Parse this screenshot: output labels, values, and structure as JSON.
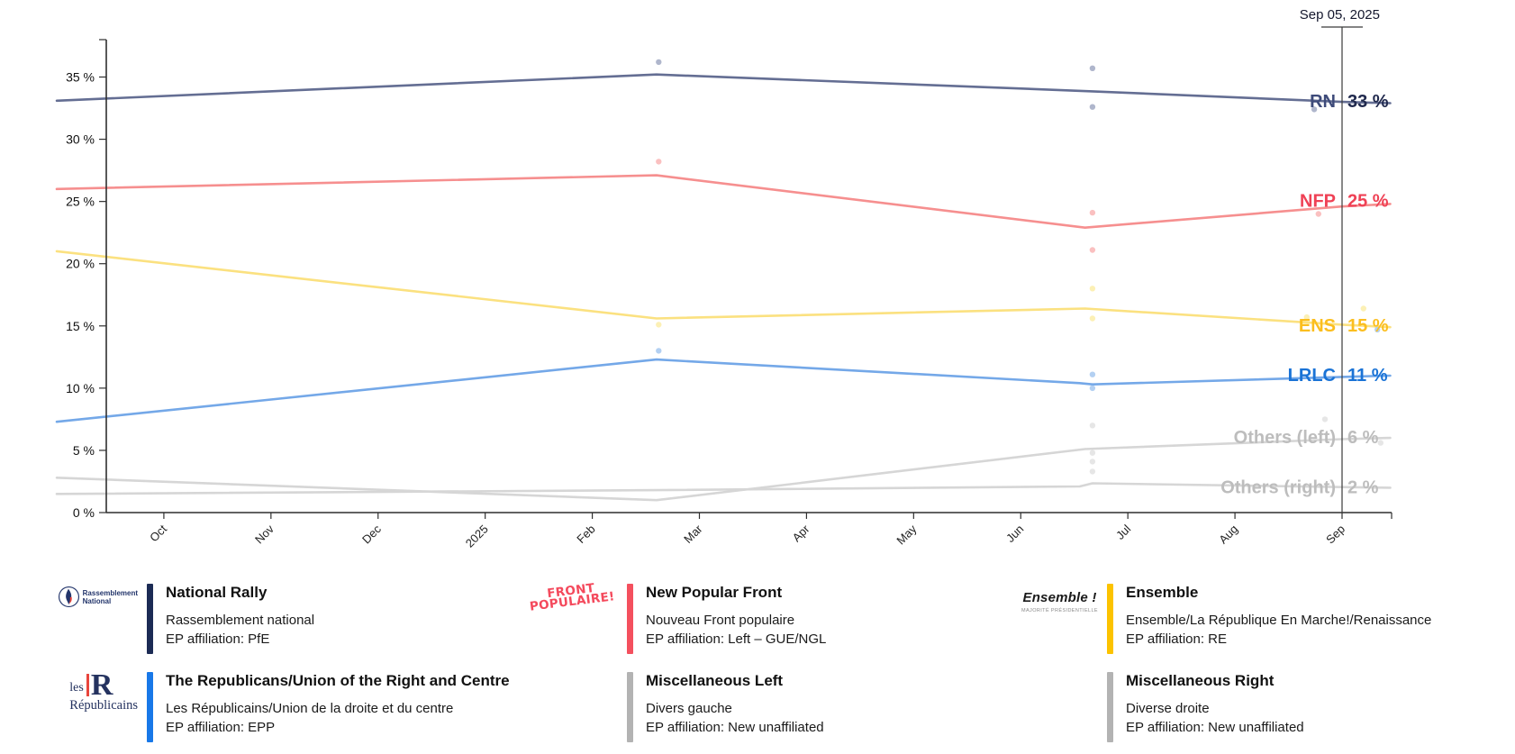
{
  "chart_data": {
    "type": "line",
    "date_marker_label": "Sep 05, 2025",
    "ylim": [
      0,
      38
    ],
    "grid": false,
    "y_tick_labels": [
      "0 %",
      "5 %",
      "10 %",
      "15 %",
      "20 %",
      "25 %",
      "30 %",
      "35 %"
    ],
    "x_tick_labels": [
      "Oct",
      "Nov",
      "Dec",
      "2025",
      "Feb",
      "Mar",
      "Apr",
      "May",
      "Jun",
      "Jul",
      "Aug",
      "Sep"
    ],
    "series": [
      {
        "abbr": "RN",
        "name": "National Rally",
        "value_label": "33 %",
        "label_value": 33,
        "line_color": "#646e93",
        "label_color": "#3e4b7a",
        "value_color": "#20294d",
        "dot_color": "#a6aec7",
        "points": [
          [
            0,
            33.1
          ],
          [
            5.6,
            35.2
          ],
          [
            9.67,
            33.85
          ],
          [
            12,
            33.0
          ],
          [
            12.45,
            32.9
          ]
        ]
      },
      {
        "abbr": "NFP",
        "name": "New Popular Front",
        "value_label": "25 %",
        "label_value": 25,
        "line_color": "#f68f8f",
        "label_color": "#ef4155",
        "value_color": "#ef4155",
        "dot_color": "#f9b9b9",
        "points": [
          [
            0,
            26.0
          ],
          [
            5.6,
            27.1
          ],
          [
            9.6,
            22.9
          ],
          [
            12,
            24.6
          ],
          [
            12.45,
            24.8
          ]
        ]
      },
      {
        "abbr": "ENS",
        "name": "Ensemble",
        "value_label": "15 %",
        "label_value": 15,
        "line_color": "#fbe180",
        "label_color": "#fbbe1f",
        "value_color": "#fbbe1f",
        "dot_color": "#fceead",
        "points": [
          [
            0,
            21.0
          ],
          [
            5.6,
            15.6
          ],
          [
            9.6,
            16.4
          ],
          [
            12,
            15.1
          ],
          [
            12.45,
            14.9
          ]
        ]
      },
      {
        "abbr": "LRLC",
        "name": "The Republicans/Union of the Right and Centre",
        "value_label": "11 %",
        "label_value": 11,
        "line_color": "#74a8e8",
        "label_color": "#1a73d6",
        "value_color": "#1a73d6",
        "dot_color": "#abcbf1",
        "points": [
          [
            0,
            7.3
          ],
          [
            5.6,
            12.3
          ],
          [
            9.55,
            10.4
          ],
          [
            9.67,
            10.3
          ],
          [
            12,
            10.9
          ],
          [
            12.45,
            11.0
          ]
        ]
      },
      {
        "abbr": "Others (left)",
        "name": "Miscellaneous Left",
        "value_label": "6 %",
        "label_value": 6,
        "line_color": "#d6d6d6",
        "label_color": "#bdbdbd",
        "value_color": "#bdbdbd",
        "dot_color": "#e3e3e3",
        "points": [
          [
            0,
            2.8
          ],
          [
            5.6,
            1.0
          ],
          [
            9.6,
            5.1
          ],
          [
            12,
            5.9
          ],
          [
            12.45,
            6.0
          ]
        ]
      },
      {
        "abbr": "Others (right)",
        "name": "Miscellaneous Right",
        "value_label": "2 %",
        "label_value": 2,
        "line_color": "#d6d6d6",
        "label_color": "#bdbdbd",
        "value_color": "#bdbdbd",
        "dot_color": "#e3e3e3",
        "points": [
          [
            0,
            1.5
          ],
          [
            5.6,
            1.8
          ],
          [
            9.55,
            2.1
          ],
          [
            9.67,
            2.35
          ],
          [
            12,
            2.05
          ],
          [
            12.45,
            2.0
          ]
        ]
      }
    ],
    "polls": [
      {
        "s": 0,
        "t": 5.62,
        "v": 36.2
      },
      {
        "s": 1,
        "t": 5.62,
        "v": 28.2
      },
      {
        "s": 2,
        "t": 5.62,
        "v": 15.1
      },
      {
        "s": 3,
        "t": 5.62,
        "v": 13.0
      },
      {
        "s": 0,
        "t": 9.67,
        "v": 35.7
      },
      {
        "s": 0,
        "t": 9.67,
        "v": 32.6
      },
      {
        "s": 1,
        "t": 9.67,
        "v": 24.1
      },
      {
        "s": 1,
        "t": 9.67,
        "v": 21.1
      },
      {
        "s": 2,
        "t": 9.67,
        "v": 18.0
      },
      {
        "s": 2,
        "t": 9.67,
        "v": 15.6
      },
      {
        "s": 3,
        "t": 9.67,
        "v": 11.1
      },
      {
        "s": 3,
        "t": 9.67,
        "v": 10.0
      },
      {
        "s": 4,
        "t": 9.67,
        "v": 7.0
      },
      {
        "s": 4,
        "t": 9.67,
        "v": 4.8
      },
      {
        "s": 5,
        "t": 9.67,
        "v": 4.1
      },
      {
        "s": 5,
        "t": 9.67,
        "v": 3.3
      },
      {
        "s": 0,
        "t": 11.74,
        "v": 32.4
      },
      {
        "s": 1,
        "t": 11.78,
        "v": 24.0
      },
      {
        "s": 2,
        "t": 11.67,
        "v": 15.7
      },
      {
        "s": 2,
        "t": 12.2,
        "v": 16.4
      },
      {
        "s": 3,
        "t": 12.33,
        "v": 14.7
      },
      {
        "s": 4,
        "t": 11.84,
        "v": 7.5
      },
      {
        "s": 4,
        "t": 12.36,
        "v": 5.6
      }
    ]
  },
  "legend": {
    "items": [
      {
        "bar_color": "#1c2b55",
        "title": "National Rally",
        "native": "Rassemblement national",
        "ep": "EP affiliation: PfE",
        "logo_lines": [
          "Rassemblement",
          "National"
        ]
      },
      {
        "bar_color": "#f4505e",
        "title": "New Popular Front",
        "native": "Nouveau Front populaire",
        "ep": "EP affiliation: Left – GUE/NGL",
        "logo_lines": [
          "FRONT",
          "POPULAIRE!"
        ]
      },
      {
        "bar_color": "#fcc300",
        "title": "Ensemble",
        "native": "Ensemble/La République En Marche!/Renaissance",
        "ep": "EP affiliation: RE",
        "logo_lines": [
          "Ensemble !",
          "MAJORITÉ PRÉSIDENTIELLE"
        ]
      },
      {
        "bar_color": "#1878e8",
        "title": "The Republicans/Union of the Right and Centre",
        "native": "Les Républicains/Union de la droite et du centre",
        "ep": "EP affiliation: EPP",
        "logo_lines": [
          "les",
          "R",
          "Républicains"
        ]
      },
      {
        "bar_color": "#b3b3b3",
        "title": "Miscellaneous Left",
        "native": "Divers gauche",
        "ep": "EP affiliation: New unaffiliated",
        "logo_lines": []
      },
      {
        "bar_color": "#b3b3b3",
        "title": "Miscellaneous Right",
        "native": "Diverse droite",
        "ep": "EP affiliation: New unaffiliated",
        "logo_lines": []
      }
    ]
  }
}
